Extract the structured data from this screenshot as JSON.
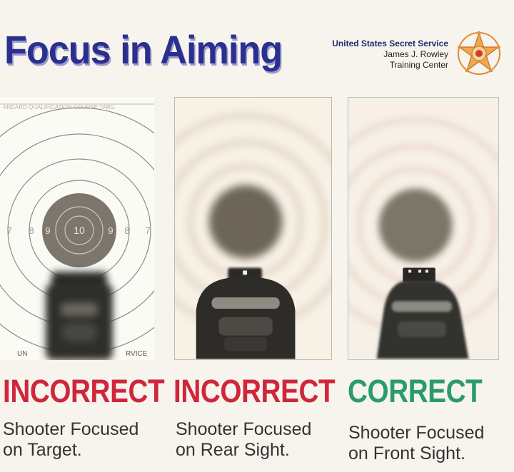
{
  "title": "Focus in Aiming",
  "agency": {
    "name": "United States Secret Service",
    "line2": "James J. Rowley",
    "line3": "Training Center"
  },
  "panels": [
    {
      "target_top_text": "ANDARD QUALIFICATION COURSE TARG",
      "ring_numbers": [
        "7",
        "8",
        "9",
        "10",
        "9",
        "8",
        "7"
      ],
      "target_bottom_left": "UN",
      "target_bottom_right": "RVICE",
      "verdict": "INCORRECT",
      "caption_line1": "Shooter Focused",
      "caption_line2": "on Target."
    },
    {
      "verdict": "INCORRECT",
      "caption_line1": "Shooter Focused",
      "caption_line2": "on Rear Sight."
    },
    {
      "verdict": "CORRECT",
      "caption_line1": "Shooter Focused",
      "caption_line2": "on Front Sight."
    }
  ],
  "colors": {
    "title": "#2b2f8f",
    "incorrect": "#d0263c",
    "correct": "#2a9b6f"
  },
  "icons": [
    "secret-service-star-badge-icon"
  ]
}
